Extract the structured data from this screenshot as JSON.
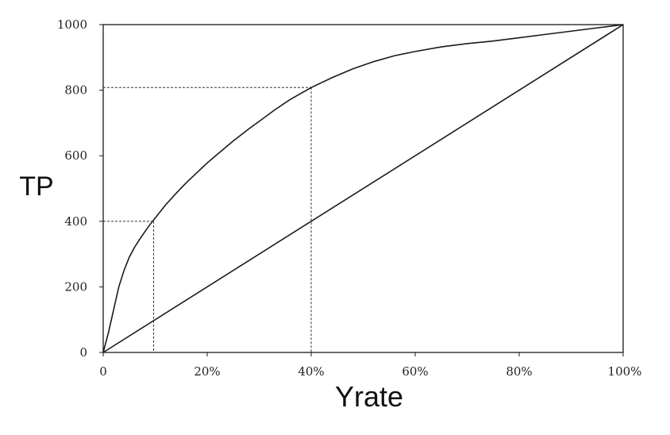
{
  "chart_data": {
    "type": "line",
    "title": "",
    "xlabel": "Yrate",
    "ylabel": "TP",
    "xlim": [
      0,
      100
    ],
    "ylim": [
      0,
      1000
    ],
    "x_ticks": [
      0,
      20,
      40,
      60,
      80,
      100
    ],
    "x_tick_labels": [
      "0",
      "20%",
      "40%",
      "60%",
      "80%",
      "100%"
    ],
    "y_ticks": [
      0,
      200,
      400,
      600,
      800,
      1000
    ],
    "y_tick_labels": [
      "0",
      "200",
      "400",
      "600",
      "800",
      "1000"
    ],
    "grid": false,
    "legend": "none",
    "series": [
      {
        "values": [
          [
            0,
            0
          ],
          [
            1,
            60
          ],
          [
            2,
            130
          ],
          [
            3,
            200
          ],
          [
            4,
            250
          ],
          [
            5,
            290
          ],
          [
            6,
            320
          ],
          [
            7,
            345
          ],
          [
            8,
            368
          ],
          [
            9,
            390
          ],
          [
            10,
            410
          ],
          [
            12,
            450
          ],
          [
            14,
            485
          ],
          [
            16,
            518
          ],
          [
            18,
            548
          ],
          [
            20,
            578
          ],
          [
            22,
            605
          ],
          [
            25,
            645
          ],
          [
            28,
            682
          ],
          [
            30,
            705
          ],
          [
            33,
            740
          ],
          [
            36,
            772
          ],
          [
            40,
            808
          ],
          [
            44,
            838
          ],
          [
            48,
            865
          ],
          [
            52,
            887
          ],
          [
            56,
            905
          ],
          [
            60,
            918
          ],
          [
            65,
            932
          ],
          [
            70,
            942
          ],
          [
            75,
            950
          ],
          [
            80,
            960
          ],
          [
            85,
            970
          ],
          [
            90,
            980
          ],
          [
            95,
            990
          ],
          [
            100,
            1000
          ]
        ],
        "color": "#1a1a1a"
      },
      {
        "values": [
          [
            0,
            0
          ],
          [
            100,
            1000
          ]
        ],
        "color": "#1a1a1a"
      }
    ],
    "reference_lines": [
      {
        "x": 9.7,
        "y": 400
      },
      {
        "x": 40,
        "y": 808
      }
    ]
  }
}
